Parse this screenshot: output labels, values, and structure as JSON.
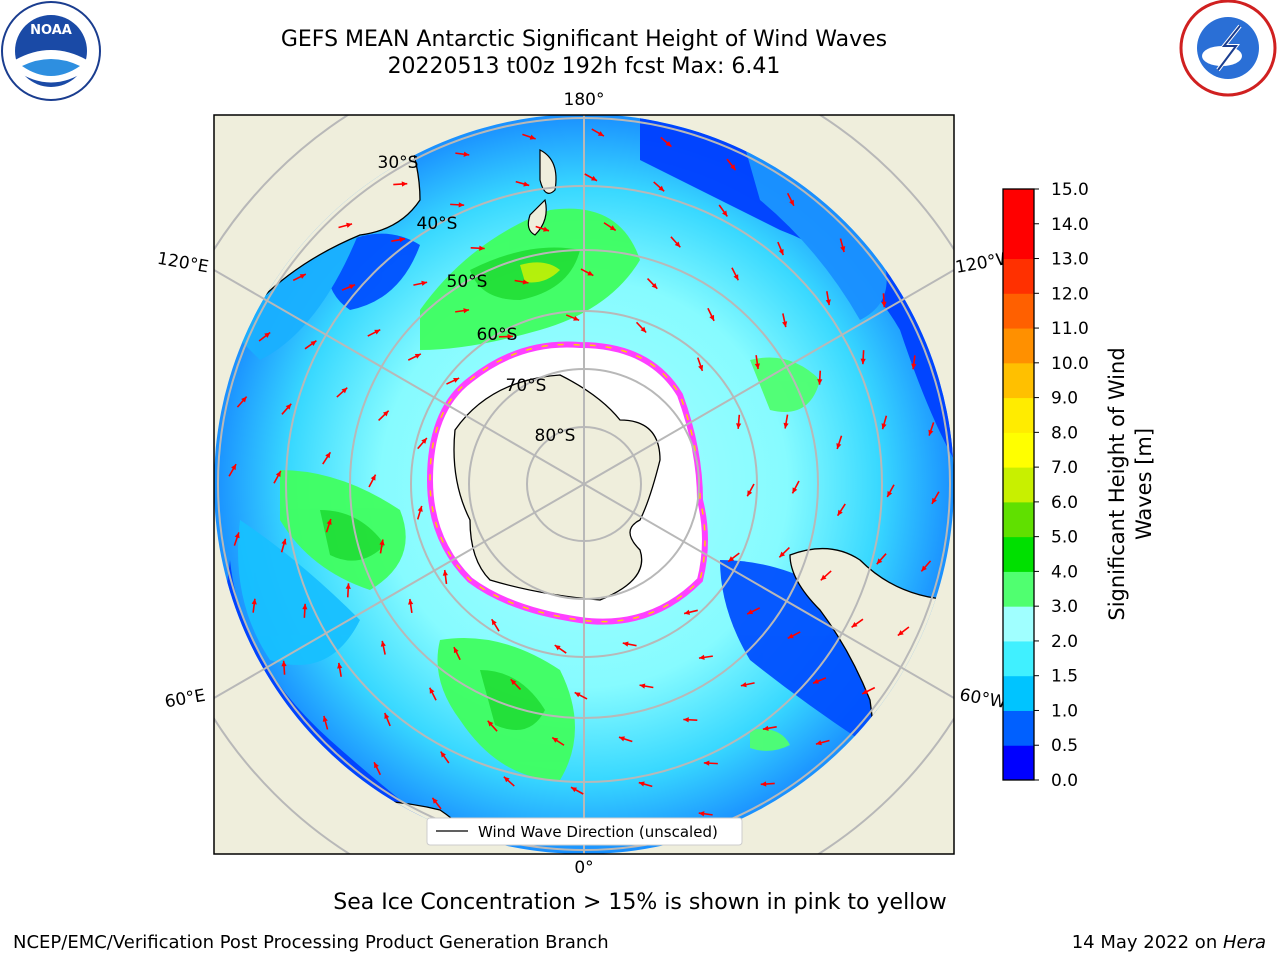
{
  "header": {
    "title_line1": "GEFS MEAN Antarctic Significant Height of Wind Waves",
    "title_line2": "20220513 t00z 192h fcst   Max: 6.41"
  },
  "logos": {
    "left": "NOAA",
    "right": "NATIONAL WEATHER SERVICE"
  },
  "map": {
    "projection": "south-polar-stereographic",
    "longitude_labels": [
      "180°",
      "120°E",
      "120°W",
      "60°E",
      "60°W",
      "0°"
    ],
    "latitude_labels": [
      "30°S",
      "40°S",
      "50°S",
      "60°S",
      "70°S",
      "80°S"
    ],
    "legend_label": "Wind Wave Direction (unscaled)",
    "arrow_color": "#ff0000"
  },
  "colorbar": {
    "label": "Significant Height of Wind Waves [m]",
    "label_line1": "Significant Height of Wind",
    "label_line2": "Waves [m]",
    "ticks": [
      "0.0",
      "0.5",
      "1.0",
      "1.5",
      "2.0",
      "3.0",
      "4.0",
      "5.0",
      "6.0",
      "7.0",
      "8.0",
      "9.0",
      "10.0",
      "11.0",
      "12.0",
      "13.0",
      "14.0",
      "15.0"
    ],
    "colors": [
      "#0000ff",
      "#0060ff",
      "#00c4ff",
      "#40f0ff",
      "#a0ffff",
      "#50ff70",
      "#00e000",
      "#60e000",
      "#c8f000",
      "#ffff00",
      "#ffec00",
      "#ffc000",
      "#ff9000",
      "#ff6000",
      "#ff3000",
      "#ff0000",
      "#ff0000"
    ]
  },
  "caption": "Sea Ice Concentration > 15% is shown in pink to yellow",
  "footer": {
    "left": "NCEP/EMC/Verification Post Processing Product Generation Branch",
    "right_date": "14 May 2022 on ",
    "right_host": "Hera"
  }
}
